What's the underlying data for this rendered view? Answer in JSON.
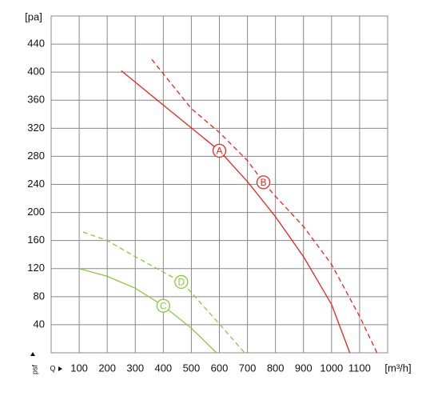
{
  "chart_data": {
    "type": "line",
    "y_label": "[pa]",
    "x_label": "[m³/h]",
    "y_symbol": "psf",
    "x_symbol": "Q",
    "xlim": [
      0,
      1200
    ],
    "ylim": [
      0,
      480
    ],
    "xticks": [
      100,
      200,
      300,
      400,
      500,
      600,
      700,
      800,
      900,
      1000,
      1100
    ],
    "yticks": [
      40,
      80,
      120,
      160,
      200,
      240,
      280,
      320,
      360,
      400,
      440
    ],
    "grid": true,
    "series": [
      {
        "name": "A",
        "color": "#e8231f",
        "dashed": false,
        "x": [
          250,
          400,
          600,
          700,
          800,
          900,
          1000,
          1065
        ],
        "values": [
          402,
          353,
          288,
          244,
          194,
          137,
          69,
          0
        ]
      },
      {
        "name": "B",
        "color": "#e8231f",
        "dashed": true,
        "x": [
          359,
          500,
          600,
          700,
          757,
          800,
          900,
          1000,
          1100,
          1162
        ],
        "values": [
          418,
          348,
          314,
          274,
          243,
          223,
          180,
          126,
          52,
          0
        ]
      },
      {
        "name": "C",
        "color": "#8cc63f",
        "dashed": false,
        "x": [
          100,
          200,
          300,
          400,
          500,
          590
        ],
        "values": [
          120,
          109,
          92,
          67,
          35,
          0
        ]
      },
      {
        "name": "D",
        "color": "#8cc63f",
        "dashed": true,
        "x": [
          114,
          200,
          300,
          400,
          464,
          500,
          600,
          690
        ],
        "values": [
          172,
          160,
          137,
          115,
          101,
          86,
          41,
          0
        ]
      }
    ]
  }
}
